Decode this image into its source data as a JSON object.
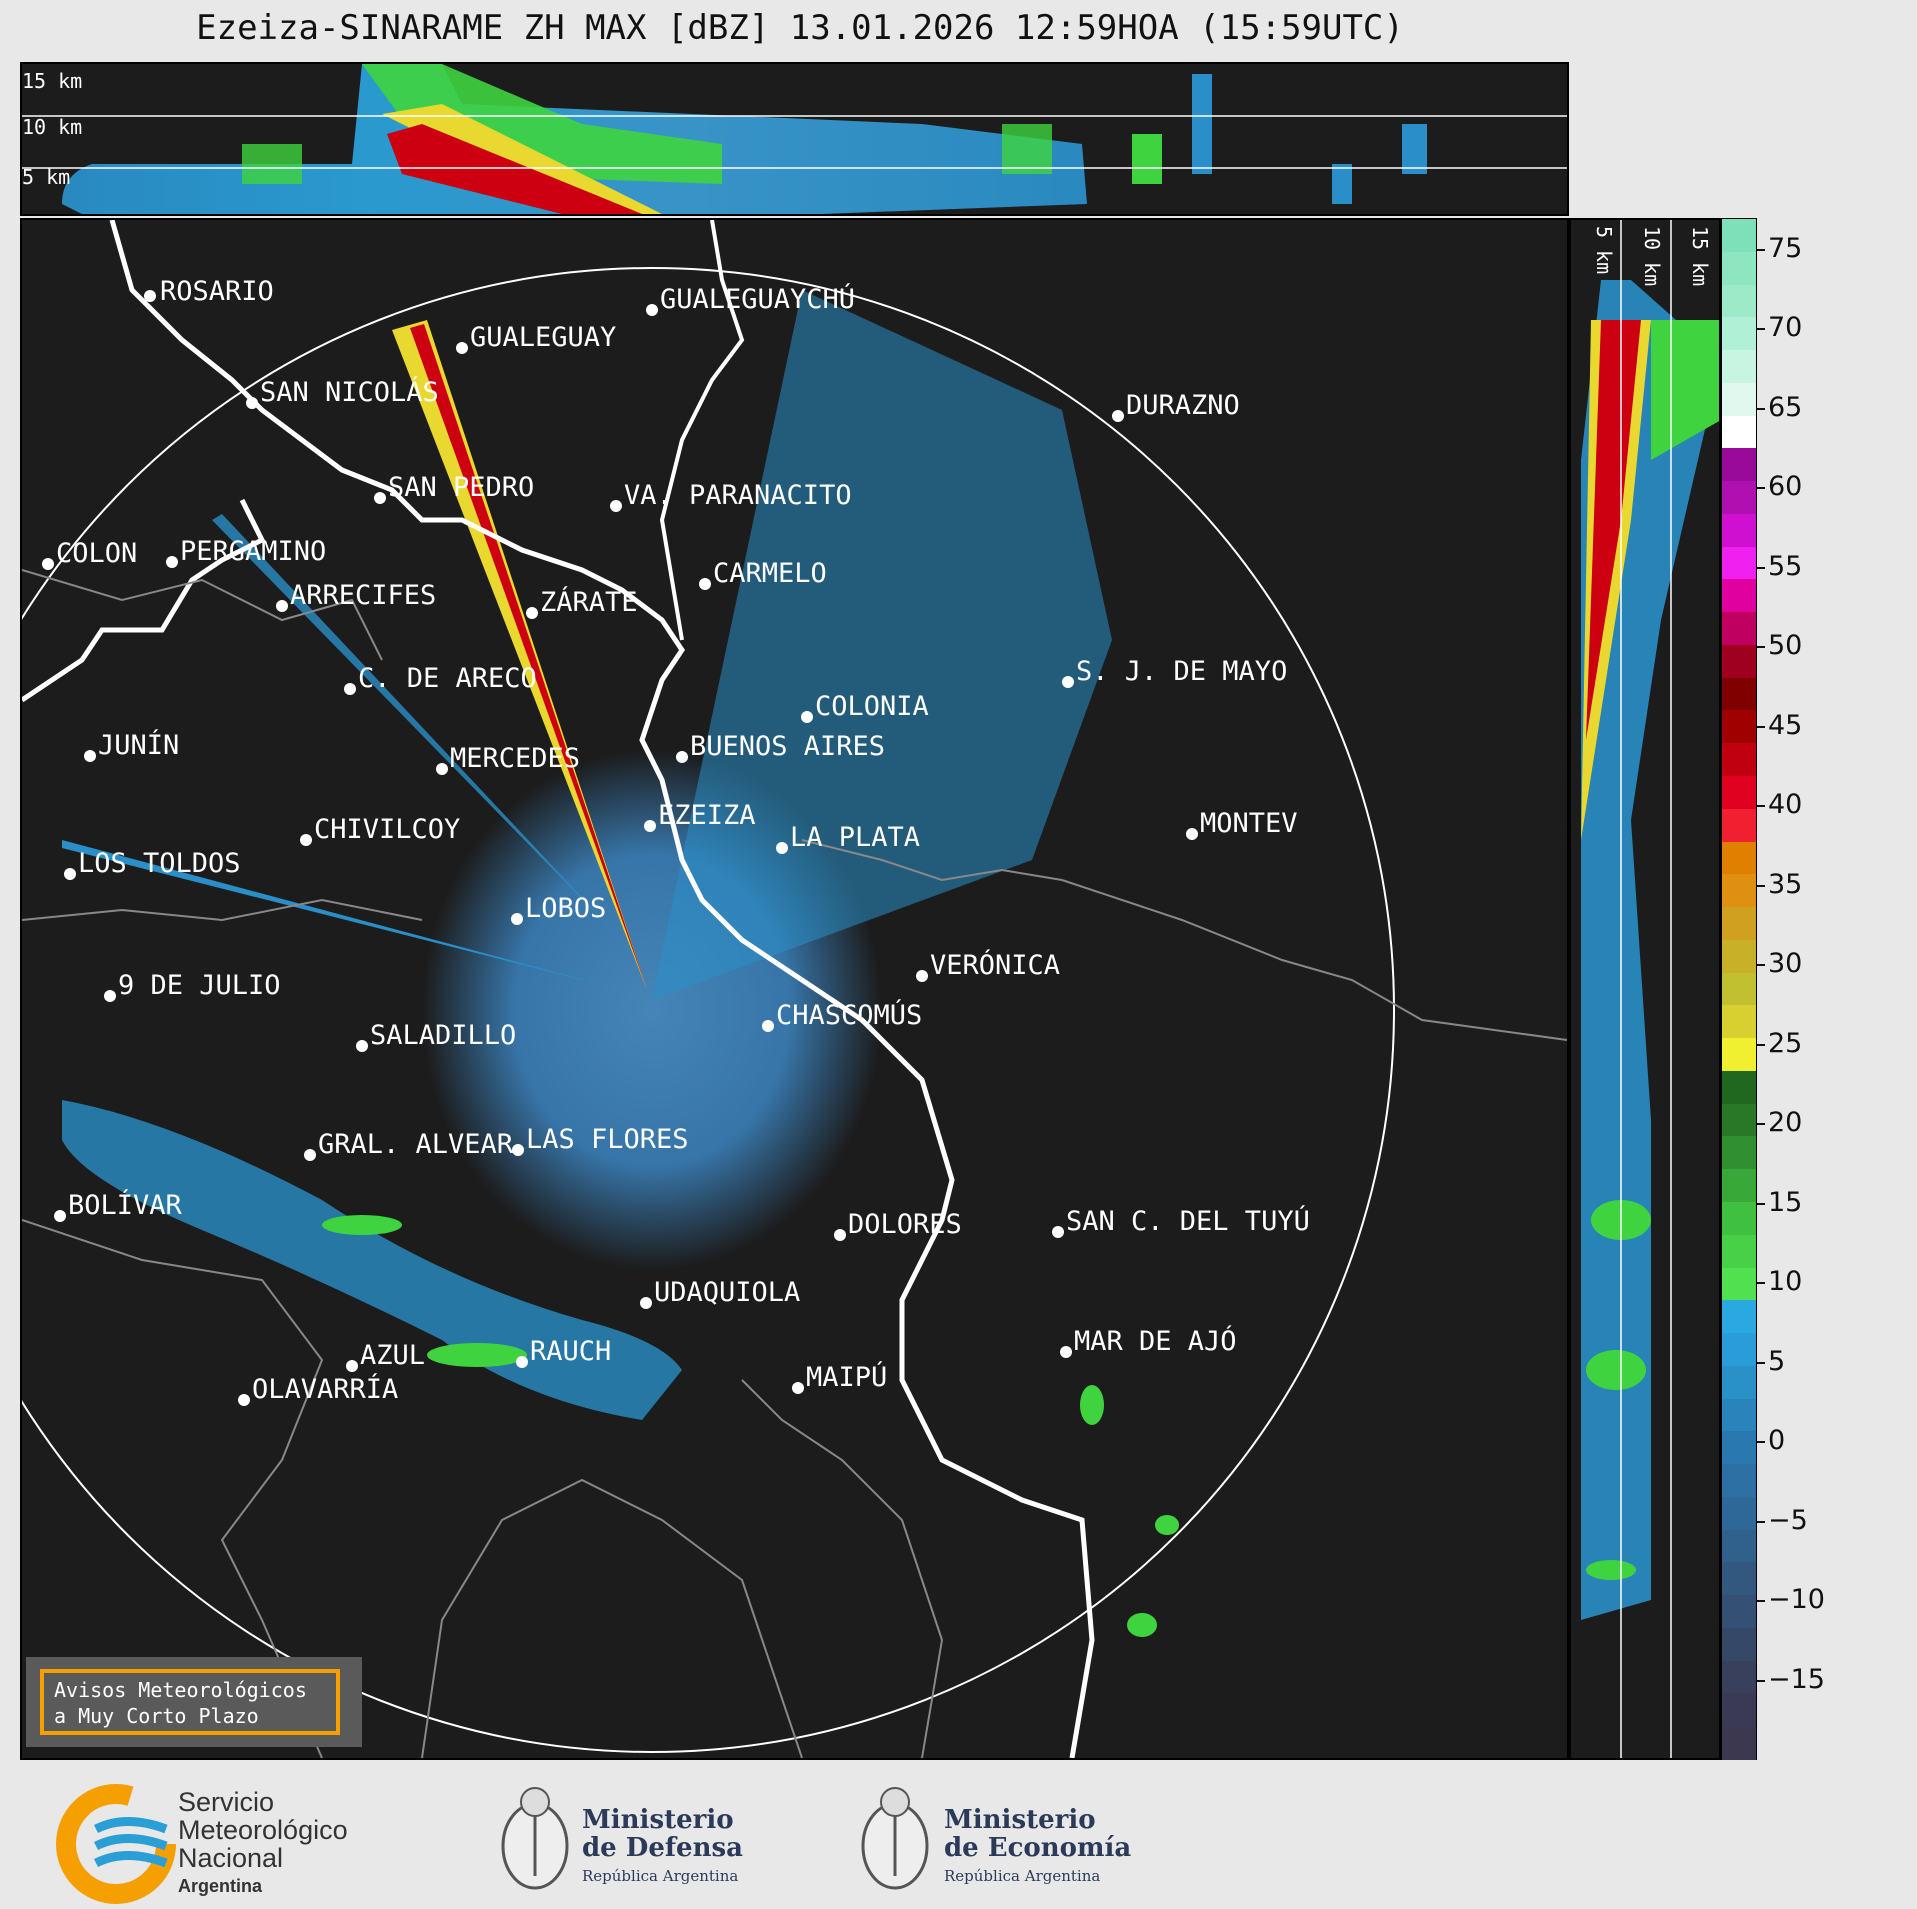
{
  "header": {
    "title": "Ezeiza-SINARAME ZH MAX [dBZ] 13.01.2026 12:59HOA (15:59UTC)"
  },
  "top_panel": {
    "height_labels": [
      "15 km",
      "10 km",
      "5 km"
    ]
  },
  "side_panel": {
    "height_labels": [
      "5 km",
      "10 km",
      "15 km"
    ]
  },
  "colorbar": {
    "ticks": [
      "75",
      "70",
      "65",
      "60",
      "55",
      "50",
      "45",
      "40",
      "35",
      "30",
      "25",
      "20",
      "15",
      "10",
      "5",
      "0",
      "−5",
      "−10",
      "−15"
    ],
    "range": [
      -20,
      77
    ]
  },
  "map": {
    "cities": [
      {
        "name": "ROSARIO"
      },
      {
        "name": "GUALEGUAYCHÚ"
      },
      {
        "name": "GUALEGUAY"
      },
      {
        "name": "SAN NICOLÁS"
      },
      {
        "name": "DURAZNO"
      },
      {
        "name": "SAN PEDRO"
      },
      {
        "name": "VA. PARANACITO"
      },
      {
        "name": "COLON"
      },
      {
        "name": "PERGAMINO"
      },
      {
        "name": "CARMELO"
      },
      {
        "name": "ARRECIFES"
      },
      {
        "name": "ZÁRATE"
      },
      {
        "name": "S. J. DE MAYO"
      },
      {
        "name": "C. DE ARECO"
      },
      {
        "name": "COLONIA"
      },
      {
        "name": "BUENOS AIRES"
      },
      {
        "name": "JUNÍN"
      },
      {
        "name": "MERCEDES"
      },
      {
        "name": "EZEIZA"
      },
      {
        "name": "MONTEV"
      },
      {
        "name": "CHIVILCOY"
      },
      {
        "name": "LA PLATA"
      },
      {
        "name": "LOS TOLDOS"
      },
      {
        "name": "LOBOS"
      },
      {
        "name": "VERÓNICA"
      },
      {
        "name": "9 DE JULIO"
      },
      {
        "name": "CHASCOMÚS"
      },
      {
        "name": "SALADILLO"
      },
      {
        "name": "GRAL. ALVEAR"
      },
      {
        "name": "LAS FLORES"
      },
      {
        "name": "BOLÍVAR"
      },
      {
        "name": "DOLORES"
      },
      {
        "name": "SAN C. DEL TUYÚ"
      },
      {
        "name": "UDAQUIOLA"
      },
      {
        "name": "MAR DE AJÓ"
      },
      {
        "name": "AZUL"
      },
      {
        "name": "RAUCH"
      },
      {
        "name": "OLAVARRÍA"
      },
      {
        "name": "MAIPÚ"
      }
    ]
  },
  "avisos": {
    "line1": "Avisos Meteorológicos",
    "line2": "a Muy Corto Plazo"
  },
  "footer": {
    "smn": {
      "line1": "Servicio",
      "line2": "Meteorológico",
      "line3": "Nacional",
      "line4": "Argentina"
    },
    "defensa": {
      "line1": "Ministerio",
      "line2": "de Defensa",
      "line3": "República Argentina"
    },
    "economia": {
      "line1": "Ministerio",
      "line2": "de Economía",
      "line3": "República Argentina"
    }
  },
  "colors": {
    "background": "#1c1c1c",
    "ring": "#ffffff",
    "accent_orange": "#f5a000",
    "smn_blue": "#2a9fd6"
  }
}
